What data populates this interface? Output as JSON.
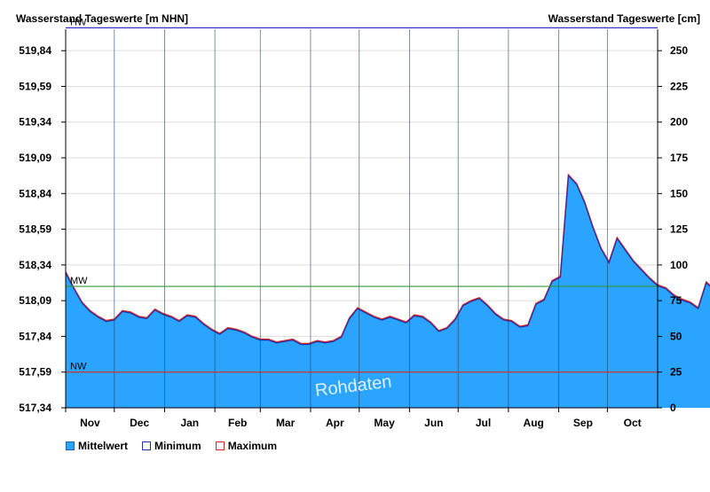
{
  "chart_data": {
    "type": "area",
    "left_axis_title": "Wasserstand Tageswerte [m NHN]",
    "right_axis_title": "Wasserstand Tageswerte [cm]",
    "left_ticks": [
      "519,84",
      "519,59",
      "519,34",
      "519,09",
      "518,84",
      "518,59",
      "518,34",
      "518,09",
      "517,84",
      "517,59",
      "517,34"
    ],
    "right_ticks": [
      "250",
      "225",
      "200",
      "175",
      "150",
      "125",
      "100",
      "75",
      "50",
      "25",
      "0"
    ],
    "right_tick_values": [
      250,
      225,
      200,
      175,
      150,
      125,
      100,
      75,
      50,
      25,
      0
    ],
    "ylim_cm": [
      0,
      265
    ],
    "months": [
      "Nov",
      "Dec",
      "Jan",
      "Feb",
      "Mar",
      "Apr",
      "May",
      "Jun",
      "Jul",
      "Aug",
      "Sep",
      "Oct"
    ],
    "month_days": [
      30,
      31,
      31,
      28,
      31,
      30,
      31,
      30,
      31,
      31,
      30,
      31
    ],
    "reference_lines": [
      {
        "label": "HW",
        "value_cm": 266,
        "color": "#3333cc"
      },
      {
        "label": "MW",
        "value_cm": 85,
        "color": "#339933"
      },
      {
        "label": "NW",
        "value_cm": 25,
        "color": "#cc3333"
      }
    ],
    "watermark": "Rohdaten",
    "series": [
      {
        "name": "Mittelwert",
        "color": "#2aa4ff",
        "points": [
          [
            0,
            95
          ],
          [
            5,
            84
          ],
          [
            10,
            74
          ],
          [
            15,
            68
          ],
          [
            20,
            64
          ],
          [
            25,
            61
          ],
          [
            30,
            62
          ],
          [
            35,
            68
          ],
          [
            40,
            67
          ],
          [
            45,
            64
          ],
          [
            50,
            63
          ],
          [
            55,
            69
          ],
          [
            60,
            66
          ],
          [
            65,
            64
          ],
          [
            70,
            61
          ],
          [
            75,
            65
          ],
          [
            80,
            64
          ],
          [
            85,
            59
          ],
          [
            90,
            55
          ],
          [
            95,
            52
          ],
          [
            100,
            56
          ],
          [
            105,
            55
          ],
          [
            110,
            53
          ],
          [
            115,
            50
          ],
          [
            120,
            48
          ],
          [
            125,
            48
          ],
          [
            130,
            46
          ],
          [
            135,
            47
          ],
          [
            140,
            48
          ],
          [
            145,
            45
          ],
          [
            150,
            45
          ],
          [
            155,
            47
          ],
          [
            160,
            46
          ],
          [
            165,
            47
          ],
          [
            170,
            50
          ],
          [
            175,
            63
          ],
          [
            180,
            70
          ],
          [
            185,
            67
          ],
          [
            190,
            64
          ],
          [
            195,
            62
          ],
          [
            200,
            64
          ],
          [
            205,
            62
          ],
          [
            210,
            60
          ],
          [
            215,
            65
          ],
          [
            220,
            64
          ],
          [
            225,
            60
          ],
          [
            230,
            54
          ],
          [
            235,
            56
          ],
          [
            240,
            62
          ],
          [
            245,
            72
          ],
          [
            250,
            75
          ],
          [
            255,
            77
          ],
          [
            260,
            72
          ],
          [
            265,
            66
          ],
          [
            270,
            62
          ],
          [
            275,
            61
          ],
          [
            280,
            57
          ],
          [
            285,
            58
          ],
          [
            290,
            73
          ],
          [
            295,
            76
          ],
          [
            300,
            89
          ],
          [
            305,
            92
          ],
          [
            310,
            163
          ],
          [
            315,
            157
          ],
          [
            320,
            144
          ],
          [
            325,
            127
          ],
          [
            330,
            112
          ],
          [
            335,
            102
          ],
          [
            340,
            119
          ],
          [
            345,
            111
          ],
          [
            350,
            103
          ],
          [
            355,
            97
          ],
          [
            360,
            91
          ],
          [
            365,
            86
          ],
          [
            370,
            84
          ],
          [
            375,
            79
          ],
          [
            380,
            76
          ],
          [
            385,
            74
          ],
          [
            390,
            70
          ],
          [
            395,
            88
          ],
          [
            400,
            83
          ],
          [
            405,
            77
          ],
          [
            410,
            72
          ],
          [
            415,
            71
          ],
          [
            420,
            70
          ]
        ]
      },
      {
        "name": "Minimum",
        "color": "#2233aa"
      },
      {
        "name": "Maximum",
        "color": "#dd2222"
      }
    ]
  }
}
